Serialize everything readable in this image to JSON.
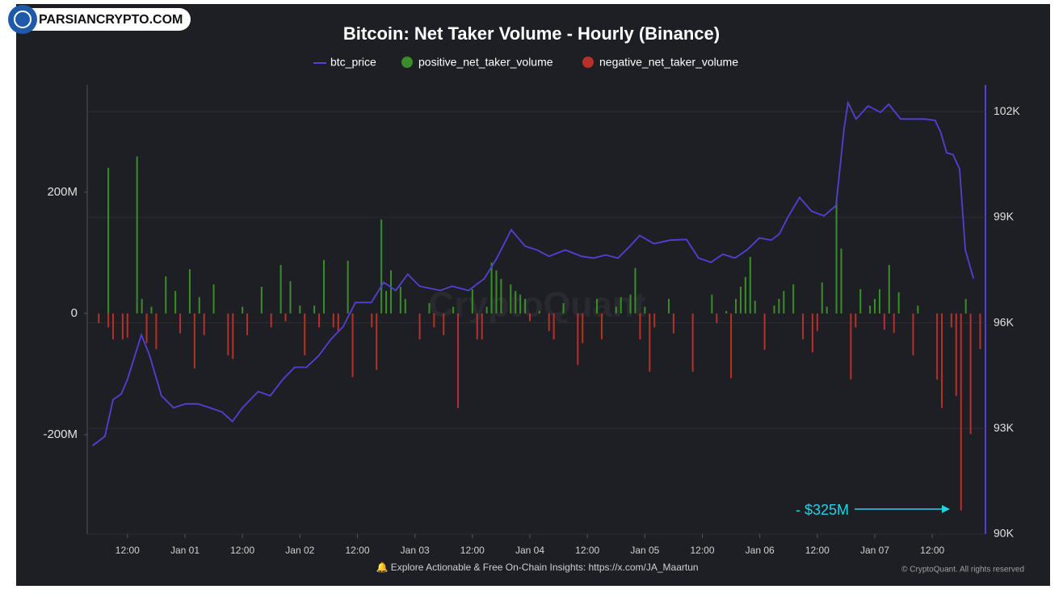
{
  "brand": "PARSIANCRYPTO.COM",
  "chart_data": {
    "type": "bar",
    "title": "Bitcoin: Net Taker Volume - Hourly (Binance)",
    "watermark": "CryptoQuant",
    "footer": "🔔 Explore Actionable & Free On-Chain Insights: https://x.com/JA_Maartun",
    "copyright": "© CryptoQuant. All rights reserved",
    "annotation": "- $325M",
    "xlim": [
      3.6,
      191.1
    ],
    "xticks": [
      {
        "value": 12,
        "label": "12:00"
      },
      {
        "value": 24,
        "label": "Jan 01"
      },
      {
        "value": 36,
        "label": "12:00"
      },
      {
        "value": 48,
        "label": "Jan 02"
      },
      {
        "value": 60,
        "label": "12:00"
      },
      {
        "value": 72,
        "label": "Jan 03"
      },
      {
        "value": 84,
        "label": "12:00"
      },
      {
        "value": 96,
        "label": "Jan 04"
      },
      {
        "value": 108,
        "label": "12:00"
      },
      {
        "value": 120,
        "label": "Jan 05"
      },
      {
        "value": 132,
        "label": "12:00"
      },
      {
        "value": 144,
        "label": "Jan 06"
      },
      {
        "value": 156,
        "label": "12:00"
      },
      {
        "value": 168,
        "label": "Jan 07"
      },
      {
        "value": 180,
        "label": "12:00"
      }
    ],
    "ylim": [
      -364,
      377
    ],
    "yticks": [
      {
        "value": -200,
        "label": "-200M"
      },
      0,
      {
        "value": 200,
        "label": "200M"
      }
    ],
    "y2lim": [
      90000,
      102760
    ],
    "y2ticks": [
      {
        "value": 90000,
        "label": "90K"
      },
      {
        "value": 93000,
        "label": "93K"
      },
      {
        "value": 96000,
        "label": "96K"
      },
      {
        "value": 99000,
        "label": "99K"
      },
      {
        "value": 102000,
        "label": "102K"
      }
    ],
    "grid": true,
    "series": [
      {
        "name": "btc_price",
        "type": "line",
        "axis": "y2",
        "color": "#5140d6",
        "x": [
          4.7,
          7.3,
          9.0,
          10.7,
          12,
          14.9,
          16.6,
          19.1,
          21.6,
          24.1,
          26.7,
          29.2,
          31.7,
          33.9,
          36.0,
          39.3,
          41.8,
          44.4,
          46.9,
          49.4,
          52.0,
          54.5,
          57.0,
          59.6,
          62.9,
          65.5,
          68.0,
          70.5,
          73.0,
          77.3,
          79.8,
          83.2,
          86.5,
          89.1,
          92.1,
          95.0,
          97.5,
          100.0,
          103.4,
          106.8,
          109.3,
          111.8,
          114.4,
          116.9,
          118.9,
          121.9,
          125.3,
          128.7,
          131.2,
          133.8,
          136.3,
          138.8,
          141.3,
          143.9,
          146.4,
          148.1,
          149.8,
          152.3,
          154.8,
          157.4,
          159.9,
          161.6,
          162.4,
          164.1,
          166.6,
          169.2,
          170.9,
          173.4,
          175.9,
          178.4,
          180.6,
          181.8,
          183.0,
          184.3,
          185.7,
          186.9,
          188.6
        ],
        "values": [
          92510,
          92780,
          93820,
          93980,
          94390,
          95660,
          95080,
          93930,
          93590,
          93700,
          93700,
          93590,
          93470,
          93200,
          93590,
          94050,
          93930,
          94390,
          94740,
          94740,
          95080,
          95540,
          95890,
          96580,
          96580,
          97150,
          96920,
          97380,
          97040,
          96920,
          97040,
          96920,
          97260,
          97840,
          98640,
          98180,
          98070,
          97890,
          98070,
          97890,
          97840,
          97930,
          97840,
          98180,
          98480,
          98250,
          98350,
          98370,
          97840,
          97720,
          97950,
          97840,
          98070,
          98410,
          98350,
          98530,
          98990,
          99560,
          99170,
          99040,
          99330,
          101520,
          102250,
          101790,
          102160,
          101980,
          102210,
          101790,
          101790,
          101790,
          101750,
          101400,
          100830,
          100780,
          100370,
          98070,
          97260
        ]
      },
      {
        "name": "positive_net_taker_volume",
        "type": "bar",
        "color": "#3b8c2a",
        "x": [
          8,
          14,
          15,
          17,
          20,
          22,
          25,
          27,
          30,
          36,
          40,
          44,
          46,
          48,
          51,
          53,
          58,
          65,
          66,
          67,
          69,
          70,
          75,
          80,
          84,
          87,
          88,
          89,
          90,
          92,
          93,
          94,
          95,
          98,
          103,
          110,
          114,
          115,
          117,
          118,
          120,
          125,
          134,
          137,
          139,
          140,
          141,
          142,
          143,
          147,
          148,
          149,
          151,
          157,
          158,
          160,
          161,
          165,
          167,
          168,
          169,
          171,
          173,
          177,
          187
        ],
        "values": [
          240,
          259,
          24,
          11,
          61,
          37,
          73,
          27,
          48,
          11,
          44,
          80,
          53,
          13,
          13,
          88,
          87,
          155,
          37,
          71,
          44,
          24,
          17,
          11,
          40,
          11,
          84,
          71,
          57,
          48,
          37,
          31,
          24,
          4,
          17,
          24,
          11,
          27,
          31,
          75,
          11,
          24,
          31,
          4,
          24,
          44,
          60,
          93,
          21,
          13,
          24,
          37,
          48,
          51,
          11,
          187,
          107,
          40,
          13,
          24,
          40,
          80,
          35,
          13,
          24
        ]
      },
      {
        "name": "negative_net_taker_volume",
        "type": "bar",
        "color": "#b8302a",
        "x": [
          6,
          8,
          9,
          11,
          12,
          16,
          18,
          23,
          26,
          28,
          33,
          34,
          37,
          42,
          45,
          49,
          52,
          55,
          56,
          59,
          63,
          64,
          73,
          76,
          78,
          81,
          85,
          86,
          96,
          100,
          101,
          106,
          107,
          111,
          119,
          121,
          122,
          126,
          130,
          135,
          138,
          145,
          153,
          155,
          156,
          163,
          164,
          170,
          172,
          176,
          181,
          182,
          184,
          185,
          186,
          188,
          190
        ],
        "values": [
          -16,
          -23,
          -43,
          -43,
          -40,
          -49,
          -59,
          -33,
          -91,
          -36,
          -69,
          -75,
          -36,
          -23,
          -13,
          -69,
          -23,
          -23,
          -29,
          -105,
          -23,
          -93,
          -43,
          -23,
          -36,
          -156,
          -43,
          -43,
          -13,
          -29,
          -43,
          -85,
          -49,
          -43,
          -43,
          -96,
          -23,
          -33,
          -96,
          -16,
          -107,
          -60,
          -43,
          -64,
          -29,
          -109,
          -23,
          -27,
          -32,
          -69,
          -109,
          -156,
          -23,
          -136,
          -325,
          -199,
          -59
        ]
      }
    ]
  }
}
